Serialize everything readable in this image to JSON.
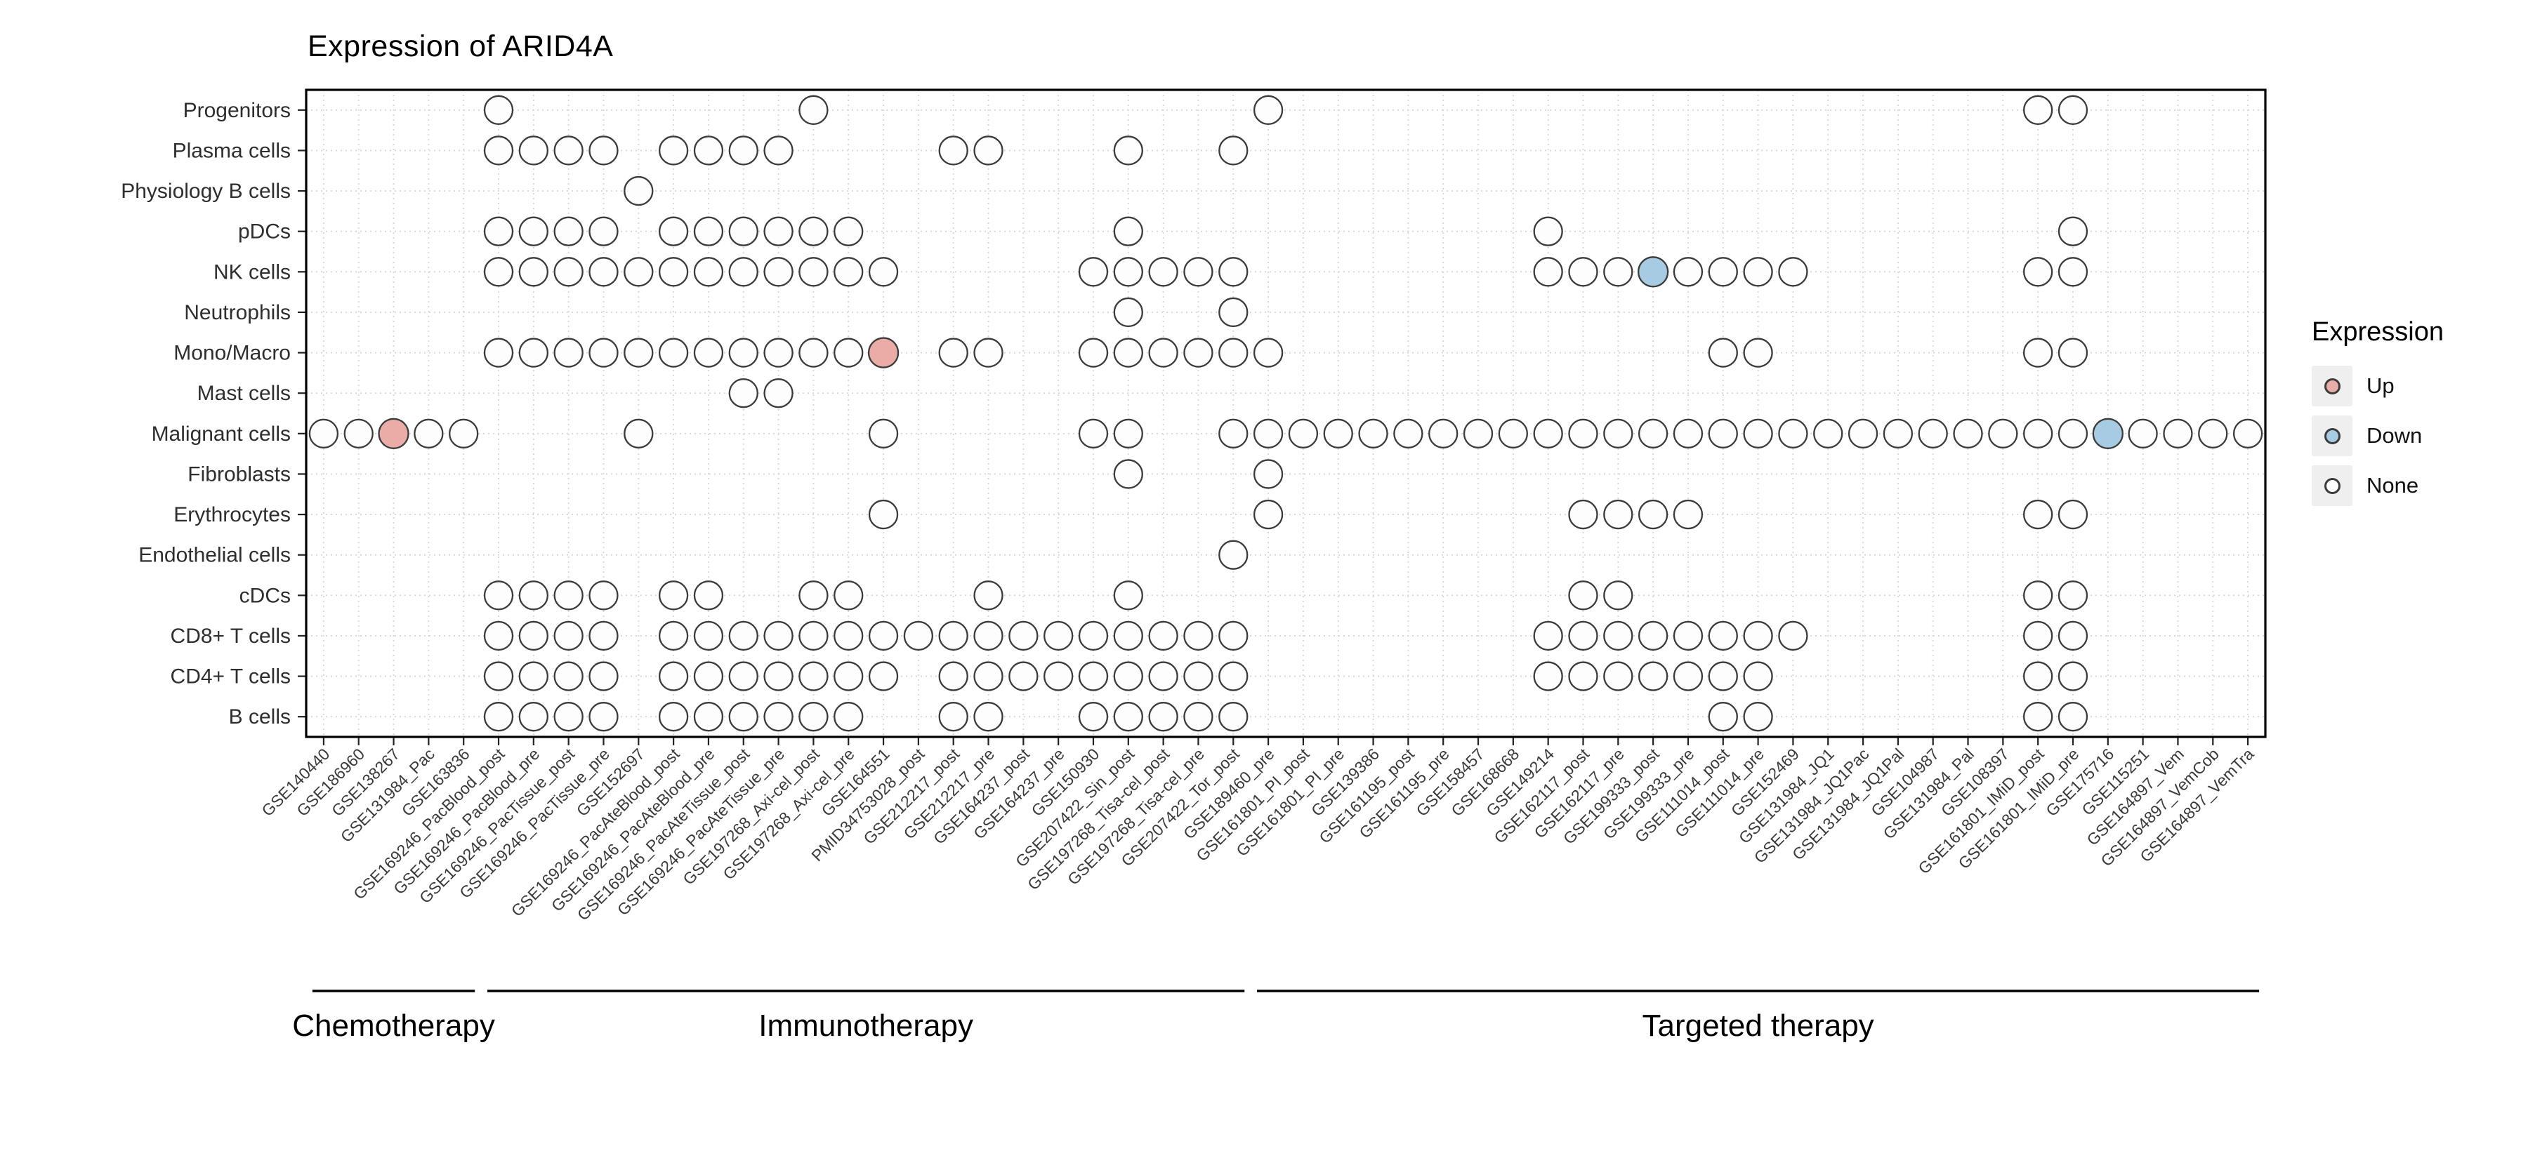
{
  "chart_data": {
    "type": "heatmap",
    "title": "Expression of ARID4A",
    "grid": true,
    "legend_position": "right",
    "rows": [
      "Progenitors",
      "Plasma cells",
      "Physiology B cells",
      "pDCs",
      "NK cells",
      "Neutrophils",
      "Mono/Macro",
      "Mast cells",
      "Malignant cells",
      "Fibroblasts",
      "Erythrocytes",
      "Endothelial cells",
      "cDCs",
      "CD8+ T cells",
      "CD4+ T cells",
      "B cells"
    ],
    "columns": [
      "GSE140440",
      "GSE186960",
      "GSE138267",
      "GSE131984_Pac",
      "GSE163836",
      "GSE169246_PacBlood_post",
      "GSE169246_PacBlood_pre",
      "GSE169246_PacTissue_post",
      "GSE169246_PacTissue_pre",
      "GSE152697",
      "GSE169246_PacAteBlood_post",
      "GSE169246_PacAteBlood_pre",
      "GSE169246_PacAteTissue_post",
      "GSE169246_PacAteTissue_pre",
      "GSE197268_Axi-cel_post",
      "GSE197268_Axi-cel_pre",
      "GSE164551",
      "PMID34753028_post",
      "GSE212217_post",
      "GSE212217_pre",
      "GSE164237_post",
      "GSE164237_pre",
      "GSE150930",
      "GSE207422_Sin_post",
      "GSE197268_Tisa-cel_post",
      "GSE197268_Tisa-cel_pre",
      "GSE207422_Tor_post",
      "GSE189460_pre",
      "GSE161801_PI_post",
      "GSE161801_PI_pre",
      "GSE139386",
      "GSE161195_post",
      "GSE161195_pre",
      "GSE158457",
      "GSE168668",
      "GSE149214",
      "GSE162117_post",
      "GSE162117_pre",
      "GSE199333_post",
      "GSE199333_pre",
      "GSE111014_post",
      "GSE111014_pre",
      "GSE152469",
      "GSE131984_JQ1",
      "GSE131984_JQ1Pac",
      "GSE131984_JQ1Pal",
      "GSE104987",
      "GSE131984_Pal",
      "GSE108397",
      "GSE161801_IMiD_post",
      "GSE161801_IMiD_pre",
      "GSE175716",
      "GSE115251",
      "GSE164897_Vem",
      "GSE164897_VemCob",
      "GSE164897_VemTra"
    ],
    "column_groups": [
      {
        "label": "Chemotherapy",
        "from": 1,
        "to": 5
      },
      {
        "label": "Immunotherapy",
        "from": 6,
        "to": 27
      },
      {
        "label": "Targeted therapy",
        "from": 28,
        "to": 56
      }
    ],
    "dots": [
      {
        "row": "Progenitors",
        "none": [
          6,
          15,
          28,
          50,
          51
        ],
        "up": [],
        "down": []
      },
      {
        "row": "Plasma cells",
        "none": [
          6,
          7,
          8,
          9,
          11,
          12,
          13,
          14,
          19,
          20,
          24,
          27
        ],
        "up": [],
        "down": []
      },
      {
        "row": "Physiology B cells",
        "none": [
          10
        ],
        "up": [],
        "down": []
      },
      {
        "row": "pDCs",
        "none": [
          6,
          7,
          8,
          9,
          11,
          12,
          13,
          14,
          15,
          16,
          24,
          36,
          51
        ],
        "up": [],
        "down": []
      },
      {
        "row": "NK cells",
        "none": [
          6,
          7,
          8,
          9,
          10,
          11,
          12,
          13,
          14,
          15,
          16,
          17,
          23,
          24,
          25,
          26,
          27,
          36,
          37,
          38,
          40,
          41,
          42,
          43,
          50,
          51
        ],
        "up": [],
        "down": [
          39
        ]
      },
      {
        "row": "Neutrophils",
        "none": [
          24,
          27
        ],
        "up": [],
        "down": []
      },
      {
        "row": "Mono/Macro",
        "none": [
          6,
          7,
          8,
          9,
          10,
          11,
          12,
          13,
          14,
          15,
          16,
          19,
          20,
          23,
          24,
          25,
          26,
          27,
          28,
          41,
          42,
          50,
          51
        ],
        "up": [
          17
        ],
        "down": []
      },
      {
        "row": "Mast cells",
        "none": [
          13,
          14
        ],
        "up": [],
        "down": []
      },
      {
        "row": "Malignant cells",
        "none": [
          1,
          2,
          4,
          5,
          10,
          17,
          23,
          24,
          27,
          28,
          29,
          30,
          31,
          32,
          33,
          34,
          35,
          36,
          37,
          38,
          39,
          40,
          41,
          42,
          43,
          44,
          45,
          46,
          47,
          48,
          49,
          50,
          51,
          53,
          54,
          55,
          56
        ],
        "up": [
          3
        ],
        "down": [
          52
        ]
      },
      {
        "row": "Fibroblasts",
        "none": [
          24,
          28
        ],
        "up": [],
        "down": []
      },
      {
        "row": "Erythrocytes",
        "none": [
          17,
          28,
          37,
          38,
          39,
          40,
          50,
          51
        ],
        "up": [],
        "down": []
      },
      {
        "row": "Endothelial cells",
        "none": [
          27
        ],
        "up": [],
        "down": []
      },
      {
        "row": "cDCs",
        "none": [
          6,
          7,
          8,
          9,
          11,
          12,
          15,
          16,
          20,
          24,
          37,
          38,
          50,
          51
        ],
        "up": [],
        "down": []
      },
      {
        "row": "CD8+ T cells",
        "none": [
          6,
          7,
          8,
          9,
          11,
          12,
          13,
          14,
          15,
          16,
          17,
          18,
          19,
          20,
          21,
          22,
          23,
          24,
          25,
          26,
          27,
          36,
          37,
          38,
          39,
          40,
          41,
          42,
          43,
          50,
          51
        ],
        "up": [],
        "down": []
      },
      {
        "row": "CD4+ T cells",
        "none": [
          6,
          7,
          8,
          9,
          11,
          12,
          13,
          14,
          15,
          16,
          17,
          19,
          20,
          21,
          22,
          23,
          24,
          25,
          26,
          27,
          36,
          37,
          38,
          39,
          40,
          41,
          42,
          50,
          51
        ],
        "up": [],
        "down": []
      },
      {
        "row": "B cells",
        "none": [
          6,
          7,
          8,
          9,
          11,
          12,
          13,
          14,
          15,
          16,
          19,
          20,
          23,
          24,
          25,
          26,
          27,
          41,
          42,
          50,
          51
        ],
        "up": [],
        "down": []
      }
    ],
    "colors": {
      "up": "#E9ACA6",
      "down": "#A7CBE2",
      "none": "#FDFDFD",
      "outline": "#3B3B3B",
      "grid": "#D7D7D7",
      "panel_border": "#000000"
    }
  },
  "legend": {
    "title": "Expression",
    "items": [
      {
        "label": "Up",
        "key": "up"
      },
      {
        "label": "Down",
        "key": "down"
      },
      {
        "label": "None",
        "key": "none"
      }
    ]
  }
}
